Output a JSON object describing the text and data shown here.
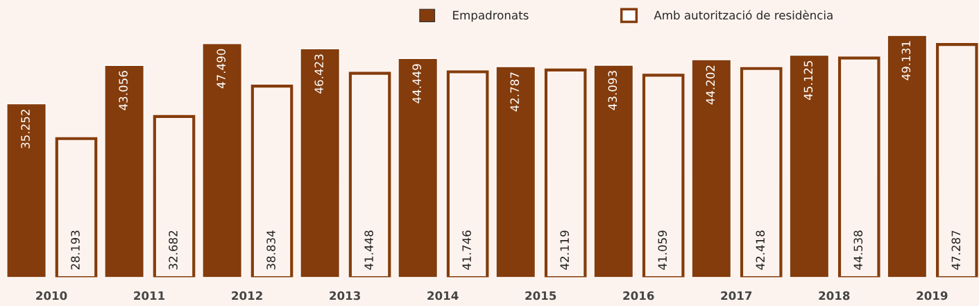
{
  "chart_data": {
    "type": "bar",
    "categories": [
      "2010",
      "2011",
      "2012",
      "2013",
      "2014",
      "2015",
      "2016",
      "2017",
      "2018",
      "2019"
    ],
    "series": [
      {
        "name": "Empadronats",
        "color": "#843c0c",
        "values": [
          35252,
          43056,
          47490,
          46423,
          44449,
          42787,
          43093,
          44202,
          45125,
          49131
        ],
        "value_labels": [
          "35.252",
          "43.056",
          "47.490",
          "46.423",
          "44.449",
          "42.787",
          "43.093",
          "44.202",
          "45.125",
          "49.131"
        ]
      },
      {
        "name": "Amb autorització de residència",
        "color": "#843c0c",
        "values": [
          28193,
          32682,
          38834,
          41448,
          41746,
          42119,
          41059,
          42418,
          44538,
          47287
        ],
        "value_labels": [
          "28.193",
          "32.682",
          "38.834",
          "41.448",
          "41.746",
          "42.119",
          "41.059",
          "42.418",
          "44.538",
          "47.287"
        ]
      }
    ],
    "legend": "top",
    "grid": false
  }
}
